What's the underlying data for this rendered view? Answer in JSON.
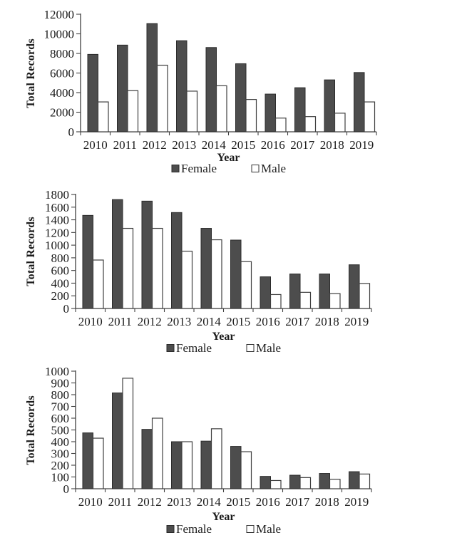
{
  "colors": {
    "female_fill": "#4d4d4d",
    "female_stroke": "#2b2b2b",
    "male_fill": "#ffffff",
    "male_stroke": "#3f3f3f",
    "axis": "#404040",
    "text": "#1c1c1c"
  },
  "chart_data": [
    {
      "type": "bar",
      "title": "",
      "xlabel": "Year",
      "ylabel": "Total Records",
      "categories": [
        "2010",
        "2011",
        "2012",
        "2013",
        "2014",
        "2015",
        "2016",
        "2017",
        "2018",
        "2019"
      ],
      "series": [
        {
          "name": "Female",
          "values": [
            7900,
            8850,
            11050,
            9300,
            8600,
            6950,
            3850,
            4500,
            5300,
            6050
          ]
        },
        {
          "name": "Male",
          "values": [
            3050,
            4200,
            6800,
            4150,
            4700,
            3300,
            1400,
            1550,
            1900,
            3050
          ]
        }
      ],
      "ylim": [
        0,
        12000
      ],
      "ytick_step": 2000,
      "grid": false,
      "legend_position": "bottom"
    },
    {
      "type": "bar",
      "title": "",
      "xlabel": "Year",
      "ylabel": "Total Records",
      "categories": [
        "2010",
        "2011",
        "2012",
        "2013",
        "2014",
        "2015",
        "2016",
        "2017",
        "2018",
        "2019"
      ],
      "series": [
        {
          "name": "Female",
          "values": [
            1470,
            1720,
            1695,
            1515,
            1265,
            1080,
            500,
            545,
            545,
            690
          ]
        },
        {
          "name": "Male",
          "values": [
            765,
            1265,
            1265,
            905,
            1085,
            740,
            220,
            255,
            235,
            395
          ]
        }
      ],
      "ylim": [
        0,
        1800
      ],
      "ytick_step": 200,
      "grid": false,
      "legend_position": "bottom"
    },
    {
      "type": "bar",
      "title": "",
      "xlabel": "Year",
      "ylabel": "Total Records",
      "categories": [
        "2010",
        "2011",
        "2012",
        "2013",
        "2014",
        "2015",
        "2016",
        "2017",
        "2018",
        "2019"
      ],
      "series": [
        {
          "name": "Female",
          "values": [
            475,
            815,
            505,
            400,
            405,
            360,
            105,
            115,
            130,
            145
          ]
        },
        {
          "name": "Male",
          "values": [
            430,
            940,
            600,
            400,
            510,
            315,
            70,
            95,
            80,
            125
          ]
        }
      ],
      "ylim": [
        0,
        1000
      ],
      "ytick_step": 100,
      "grid": false,
      "legend_position": "bottom"
    }
  ]
}
